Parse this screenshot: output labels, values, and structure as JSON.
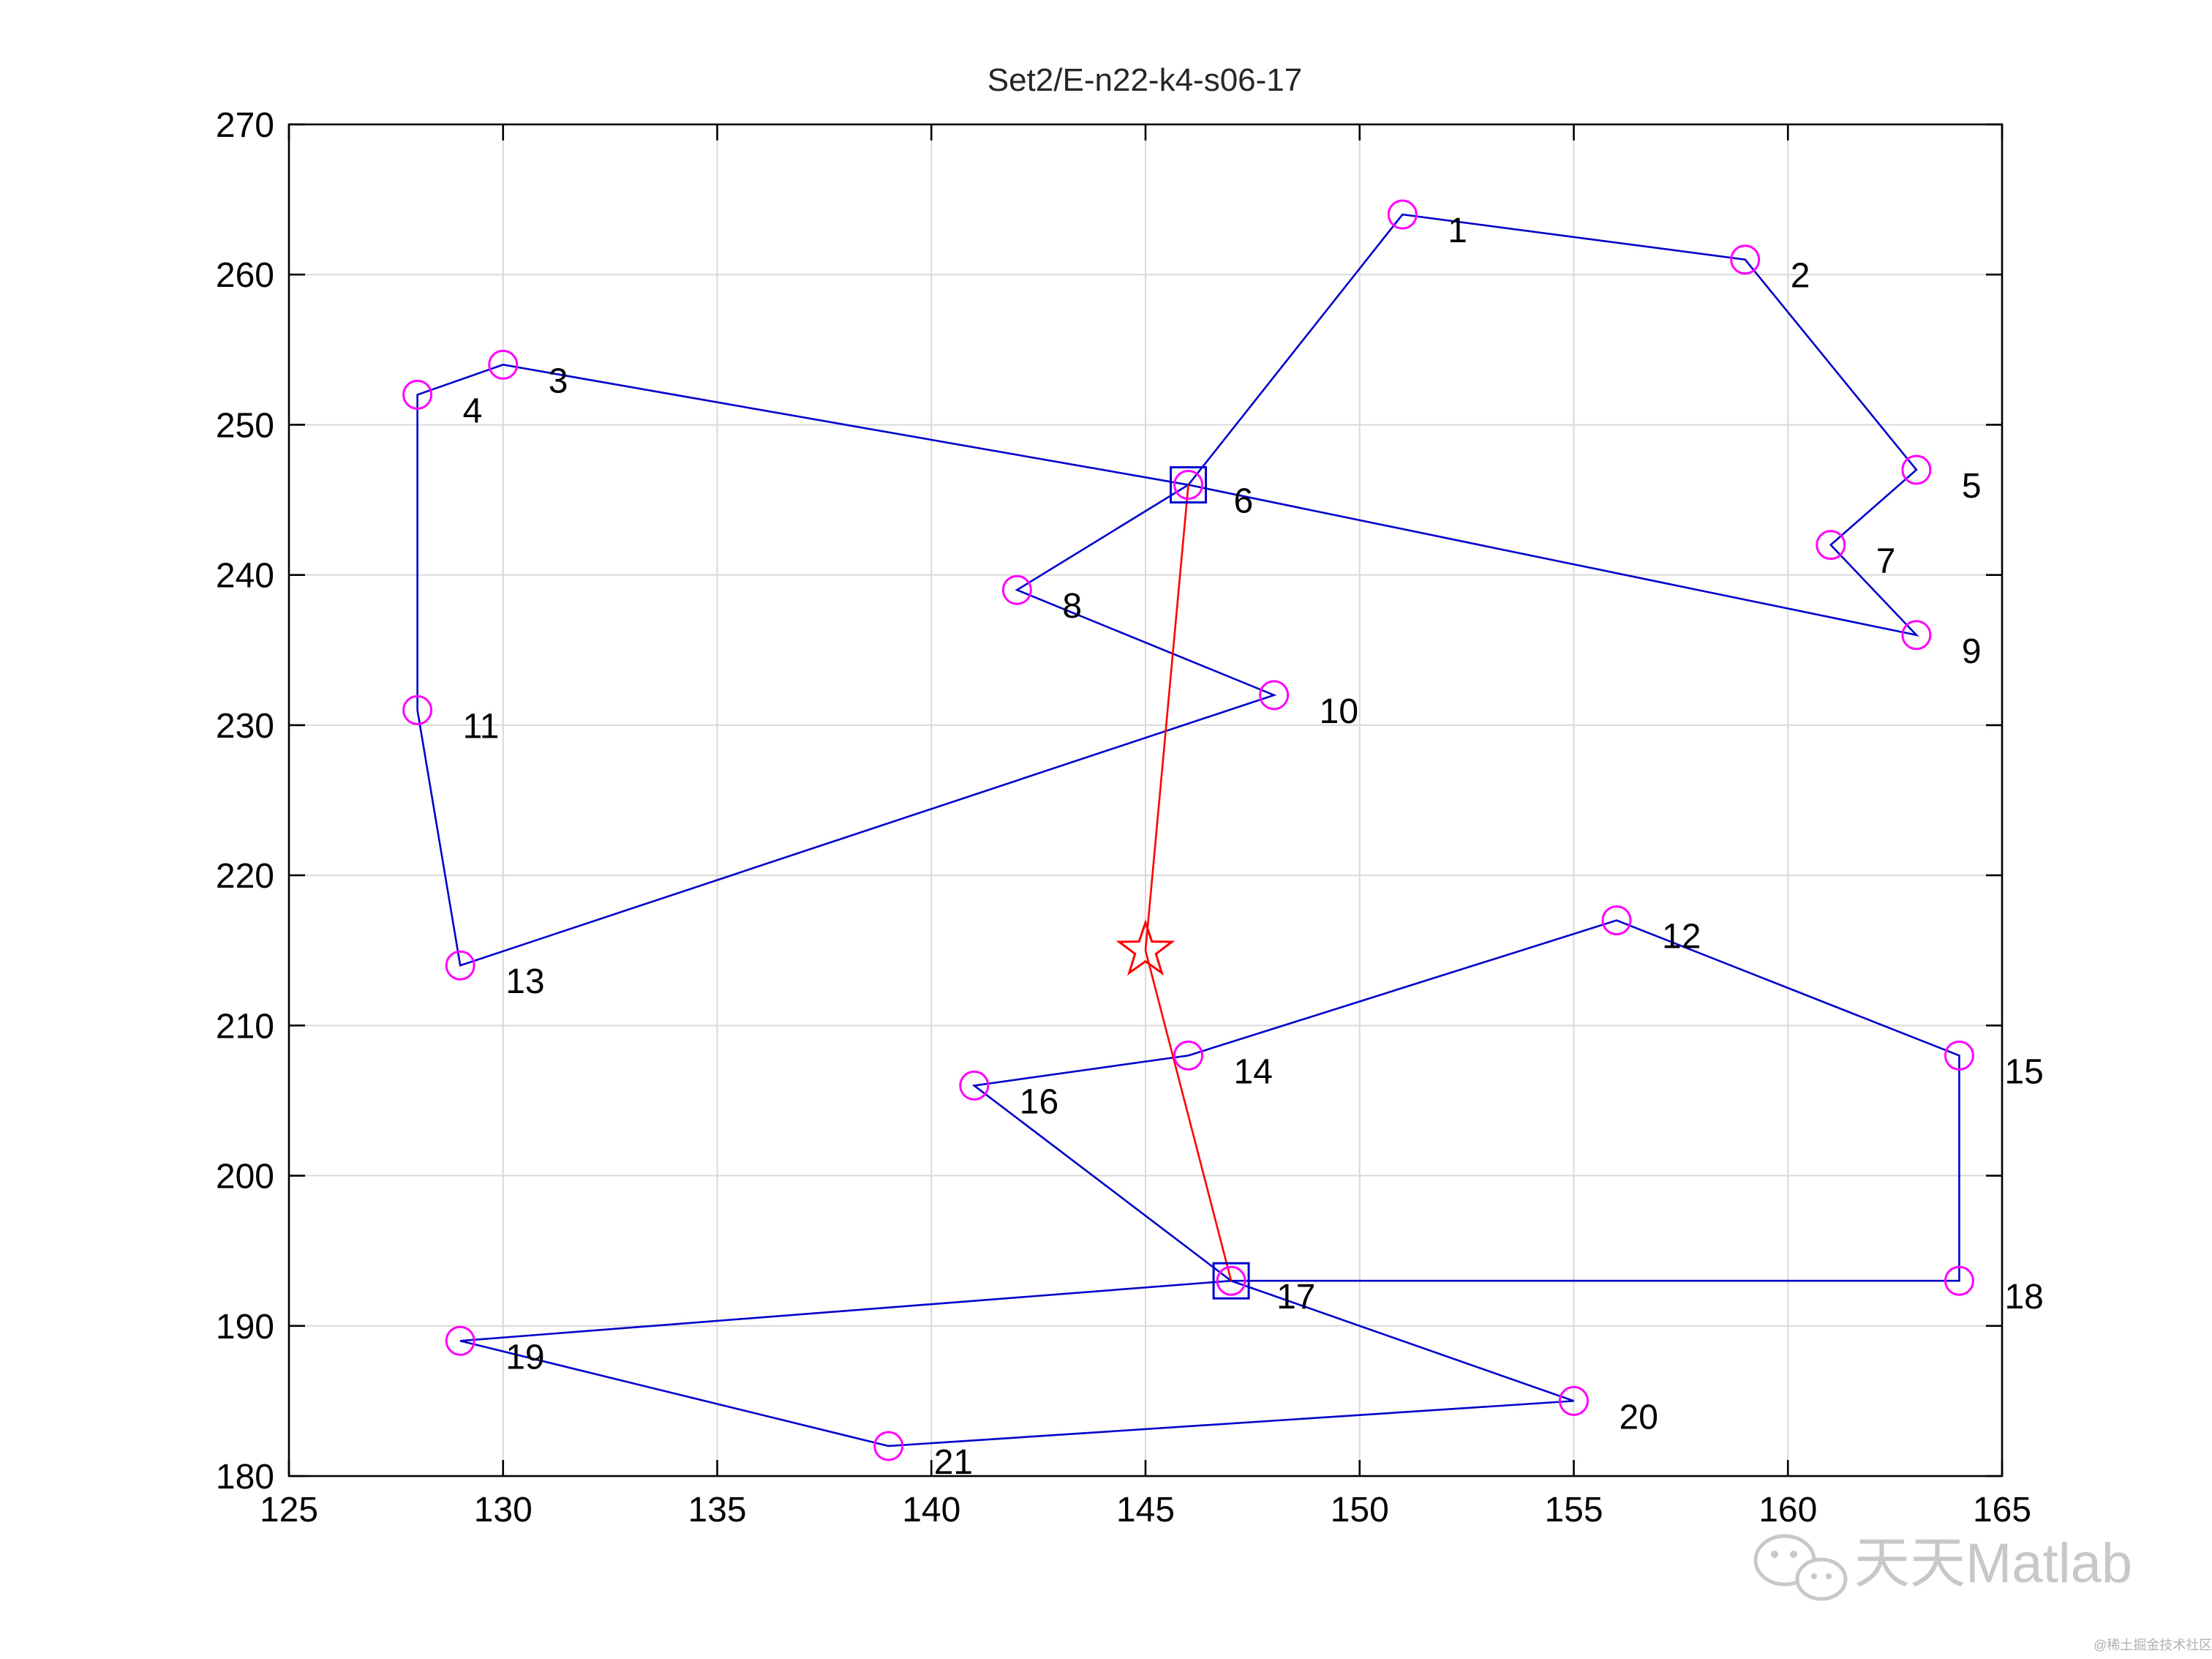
{
  "chart_data": {
    "type": "scatter",
    "title": "Set2/E-n22-k4-s06-17",
    "xlabel": "",
    "ylabel": "",
    "xlim": [
      125,
      165
    ],
    "ylim": [
      180,
      270
    ],
    "xticks": [
      125,
      130,
      135,
      140,
      145,
      150,
      155,
      160,
      165
    ],
    "yticks": [
      180,
      190,
      200,
      210,
      220,
      230,
      240,
      250,
      260,
      270
    ],
    "grid": true,
    "colors": {
      "customer": "#ff00ff",
      "route": "#0000cc",
      "depot_route": "#ff0000",
      "satellite": "#0000cc",
      "depot": "#ff0000",
      "axis": "#000000",
      "grid": "#d9d9d9"
    },
    "depot": {
      "x": 145,
      "y": 215
    },
    "satellites": [
      {
        "label": "6",
        "x": 146,
        "y": 246
      },
      {
        "label": "17",
        "x": 147,
        "y": 193
      }
    ],
    "customers": [
      {
        "label": "1",
        "x": 151,
        "y": 264
      },
      {
        "label": "2",
        "x": 159,
        "y": 261
      },
      {
        "label": "3",
        "x": 130,
        "y": 254
      },
      {
        "label": "4",
        "x": 128,
        "y": 252
      },
      {
        "label": "5",
        "x": 163,
        "y": 247
      },
      {
        "label": "7",
        "x": 161,
        "y": 242
      },
      {
        "label": "8",
        "x": 142,
        "y": 239
      },
      {
        "label": "9",
        "x": 163,
        "y": 236
      },
      {
        "label": "10",
        "x": 148,
        "y": 232
      },
      {
        "label": "11",
        "x": 128,
        "y": 231
      },
      {
        "label": "12",
        "x": 156,
        "y": 217
      },
      {
        "label": "13",
        "x": 129,
        "y": 214
      },
      {
        "label": "14",
        "x": 146,
        "y": 208
      },
      {
        "label": "15",
        "x": 164,
        "y": 208
      },
      {
        "label": "16",
        "x": 141,
        "y": 206
      },
      {
        "label": "18",
        "x": 164,
        "y": 193
      },
      {
        "label": "19",
        "x": 129,
        "y": 189
      },
      {
        "label": "20",
        "x": 155,
        "y": 185
      },
      {
        "label": "21",
        "x": 139,
        "y": 182
      }
    ],
    "first_echelon_routes": [
      [
        [
          145,
          215
        ],
        [
          146,
          246
        ]
      ],
      [
        [
          145,
          215
        ],
        [
          147,
          193
        ]
      ]
    ],
    "second_echelon_routes": [
      [
        [
          146,
          246
        ],
        [
          151,
          264
        ],
        [
          159,
          261
        ],
        [
          163,
          247
        ],
        [
          161,
          242
        ],
        [
          163,
          236
        ],
        [
          146,
          246
        ]
      ],
      [
        [
          146,
          246
        ],
        [
          130,
          254
        ],
        [
          128,
          252
        ],
        [
          128,
          231
        ],
        [
          129,
          214
        ],
        [
          148,
          232
        ],
        [
          142,
          239
        ],
        [
          146,
          246
        ]
      ],
      [
        [
          147,
          193
        ],
        [
          141,
          206
        ],
        [
          146,
          208
        ],
        [
          156,
          217
        ],
        [
          164,
          208
        ],
        [
          164,
          193
        ],
        [
          147,
          193
        ]
      ],
      [
        [
          147,
          193
        ],
        [
          129,
          189
        ],
        [
          139,
          182
        ],
        [
          155,
          185
        ],
        [
          147,
          193
        ]
      ]
    ]
  },
  "watermark": {
    "text": "天天Matlab",
    "small_text": "@稀土掘金技术社区",
    "icon": "wechat-icon"
  }
}
